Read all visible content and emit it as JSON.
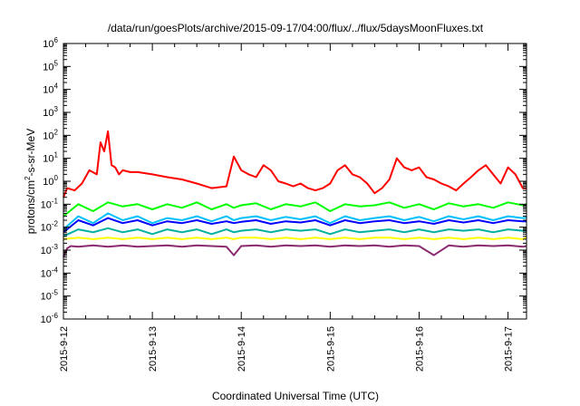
{
  "chart_data": {
    "type": "line",
    "title": "/data/run/goesPlots/archive/2015-09-17/04:00/flux/../flux/5daysMoonFluxes.txt",
    "xlabel": "Coordinated Universal Time (UTC)",
    "ylabel": {
      "base": "protons/cm",
      "sup": "2",
      "rest": "-s-sr-MeV"
    },
    "yscale": "log",
    "ylim": [
      1e-06,
      1000000.0
    ],
    "xlim": [
      "2015-09-12T00:00",
      "2015-09-17T05:00"
    ],
    "x_ticks": [
      "2015-9-12",
      "2015-9-13",
      "2015-9-14",
      "2015-9-15",
      "2015-9-16",
      "2015-9-17"
    ],
    "y_ticks": [
      {
        "value": 1000000.0,
        "base": "10",
        "exp": "6"
      },
      {
        "value": 100000.0,
        "base": "10",
        "exp": "5"
      },
      {
        "value": 10000.0,
        "base": "10",
        "exp": "4"
      },
      {
        "value": 1000.0,
        "base": "10",
        "exp": "3"
      },
      {
        "value": 100.0,
        "base": "10",
        "exp": "2"
      },
      {
        "value": 10.0,
        "base": "10",
        "exp": "1"
      },
      {
        "value": 1.0,
        "base": "10",
        "exp": "0"
      },
      {
        "value": 0.1,
        "base": "10",
        "exp": "-1"
      },
      {
        "value": 0.01,
        "base": "10",
        "exp": "-2"
      },
      {
        "value": 0.001,
        "base": "10",
        "exp": "-3"
      },
      {
        "value": 0.0001,
        "base": "10",
        "exp": "-4"
      },
      {
        "value": 1e-05,
        "base": "10",
        "exp": "-5"
      },
      {
        "value": 1e-06,
        "base": "10",
        "exp": "-6"
      }
    ],
    "grid": false,
    "legend": "none",
    "series": [
      {
        "color": "#ff0000",
        "x_hours": [
          0,
          1,
          3,
          5,
          7,
          9,
          10,
          11,
          12,
          13,
          14,
          15,
          16,
          18,
          20,
          24,
          28,
          32,
          36,
          40,
          44,
          46,
          48,
          50,
          52,
          54,
          56,
          58,
          60,
          62,
          64,
          66,
          68,
          70,
          72,
          74,
          76,
          78,
          80,
          82,
          84,
          86,
          88,
          90,
          92,
          94,
          96,
          98,
          100,
          102,
          104,
          106,
          108,
          110,
          112,
          114,
          116,
          118,
          120,
          122,
          124,
          125
        ],
        "values": [
          0.2,
          0.5,
          0.4,
          0.8,
          3,
          2,
          50,
          20,
          150,
          5,
          4,
          2,
          3,
          2.5,
          2.5,
          2,
          1.5,
          1.2,
          0.8,
          0.5,
          0.6,
          12,
          3,
          2,
          1.5,
          5,
          3,
          1,
          0.8,
          0.6,
          0.8,
          0.5,
          0.4,
          0.5,
          0.8,
          3,
          5,
          2,
          1.5,
          0.8,
          0.3,
          0.5,
          1.2,
          10,
          4,
          3,
          4,
          1.5,
          1.2,
          0.8,
          0.6,
          0.4,
          0.8,
          1.5,
          3,
          5,
          2,
          0.8,
          4,
          2,
          0.5,
          0.5
        ]
      },
      {
        "color": "#00ff00",
        "x_hours": [
          0,
          4,
          8,
          12,
          16,
          20,
          24,
          28,
          32,
          36,
          40,
          44,
          46,
          48,
          52,
          56,
          60,
          64,
          68,
          72,
          76,
          80,
          84,
          88,
          92,
          96,
          100,
          104,
          108,
          112,
          116,
          120,
          124,
          125
        ],
        "values": [
          0.03,
          0.1,
          0.05,
          0.12,
          0.08,
          0.1,
          0.06,
          0.1,
          0.07,
          0.12,
          0.06,
          0.1,
          0.07,
          0.09,
          0.11,
          0.06,
          0.1,
          0.08,
          0.12,
          0.05,
          0.1,
          0.08,
          0.09,
          0.12,
          0.07,
          0.1,
          0.06,
          0.11,
          0.08,
          0.1,
          0.07,
          0.12,
          0.09,
          0.1
        ]
      },
      {
        "color": "#00c0ff",
        "x_hours": [
          0,
          4,
          8,
          12,
          16,
          20,
          24,
          28,
          32,
          36,
          40,
          44,
          46,
          48,
          52,
          56,
          60,
          64,
          68,
          72,
          76,
          80,
          84,
          88,
          92,
          96,
          100,
          104,
          108,
          112,
          116,
          120,
          124,
          125
        ],
        "values": [
          0.008,
          0.03,
          0.015,
          0.04,
          0.02,
          0.03,
          0.015,
          0.025,
          0.02,
          0.03,
          0.018,
          0.03,
          0.02,
          0.025,
          0.03,
          0.02,
          0.028,
          0.022,
          0.03,
          0.015,
          0.03,
          0.02,
          0.025,
          0.03,
          0.02,
          0.028,
          0.018,
          0.03,
          0.022,
          0.03,
          0.02,
          0.03,
          0.025,
          0.026
        ]
      },
      {
        "color": "#0000ff",
        "x_hours": [
          0,
          4,
          8,
          12,
          16,
          20,
          24,
          28,
          32,
          36,
          40,
          44,
          46,
          48,
          52,
          56,
          60,
          64,
          68,
          72,
          76,
          80,
          84,
          88,
          92,
          96,
          100,
          104,
          108,
          112,
          116,
          120,
          124,
          125
        ],
        "values": [
          0.006,
          0.02,
          0.012,
          0.025,
          0.015,
          0.02,
          0.012,
          0.018,
          0.015,
          0.02,
          0.014,
          0.018,
          0.015,
          0.017,
          0.02,
          0.014,
          0.018,
          0.016,
          0.02,
          0.012,
          0.02,
          0.015,
          0.018,
          0.02,
          0.015,
          0.018,
          0.014,
          0.02,
          0.016,
          0.02,
          0.015,
          0.02,
          0.018,
          0.018
        ]
      },
      {
        "color": "#00b0a0",
        "x_hours": [
          0,
          4,
          8,
          12,
          16,
          20,
          24,
          28,
          32,
          36,
          40,
          44,
          46,
          48,
          52,
          56,
          60,
          64,
          68,
          72,
          76,
          80,
          84,
          88,
          92,
          96,
          100,
          104,
          108,
          112,
          116,
          120,
          124,
          125
        ],
        "values": [
          0.004,
          0.008,
          0.006,
          0.009,
          0.006,
          0.008,
          0.005,
          0.008,
          0.006,
          0.008,
          0.005,
          0.008,
          0.006,
          0.007,
          0.008,
          0.006,
          0.008,
          0.007,
          0.008,
          0.005,
          0.008,
          0.006,
          0.007,
          0.008,
          0.006,
          0.008,
          0.006,
          0.008,
          0.007,
          0.008,
          0.006,
          0.008,
          0.007,
          0.007
        ]
      },
      {
        "color": "#ffff00",
        "x_hours": [
          0,
          4,
          8,
          12,
          16,
          20,
          24,
          28,
          32,
          36,
          40,
          44,
          46,
          48,
          52,
          56,
          60,
          64,
          68,
          72,
          76,
          80,
          84,
          88,
          92,
          96,
          100,
          104,
          108,
          112,
          116,
          120,
          124,
          125
        ],
        "values": [
          0.003,
          0.0035,
          0.003,
          0.0035,
          0.003,
          0.0035,
          0.003,
          0.0035,
          0.003,
          0.0035,
          0.003,
          0.0035,
          0.003,
          0.0035,
          0.0035,
          0.003,
          0.0035,
          0.003,
          0.0035,
          0.003,
          0.0035,
          0.003,
          0.0035,
          0.0035,
          0.003,
          0.0035,
          0.003,
          0.0035,
          0.003,
          0.0035,
          0.003,
          0.0035,
          0.003,
          0.0035
        ]
      },
      {
        "color": "#8b2a6f",
        "x_hours": [
          0,
          1,
          2,
          4,
          8,
          12,
          16,
          20,
          24,
          28,
          32,
          36,
          40,
          44,
          46,
          48,
          52,
          56,
          60,
          64,
          68,
          72,
          76,
          80,
          84,
          88,
          92,
          96,
          100,
          104,
          108,
          112,
          116,
          120,
          124,
          125
        ],
        "values": [
          0.0005,
          0.0012,
          0.0015,
          0.0014,
          0.0016,
          0.0014,
          0.0016,
          0.0014,
          0.0015,
          0.0016,
          0.0014,
          0.0016,
          0.0015,
          0.0014,
          0.0006,
          0.0015,
          0.0016,
          0.0014,
          0.0016,
          0.0015,
          0.0016,
          0.0014,
          0.0016,
          0.0015,
          0.0016,
          0.0014,
          0.0016,
          0.0015,
          0.0006,
          0.0016,
          0.0014,
          0.0016,
          0.0015,
          0.0016,
          0.0014,
          0.0015
        ]
      }
    ]
  }
}
